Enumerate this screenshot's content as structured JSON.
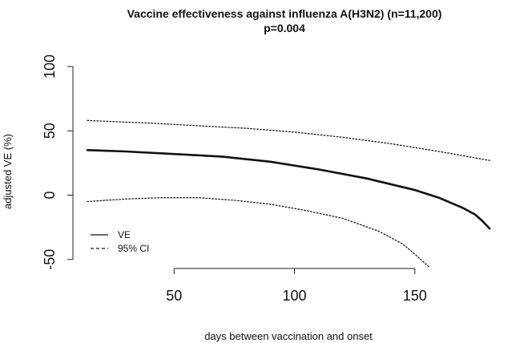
{
  "chart_data": {
    "type": "line",
    "title": "Vaccine effectiveness against influenza A(H3N2) (n=11,200)",
    "subtitle": "p=0.004",
    "xlabel": "days between vaccination and onset",
    "ylabel": "adjusted VE (%)",
    "xlim": [
      8,
      187
    ],
    "ylim": [
      -57,
      105
    ],
    "x_ticks": [
      50,
      100,
      150
    ],
    "y_ticks": [
      -50,
      0,
      50,
      100
    ],
    "grid": false,
    "legend": {
      "placement": "bottom-left",
      "entries": [
        "VE",
        "95% CI"
      ]
    },
    "series": [
      {
        "name": "VE",
        "style": "solid",
        "x": [
          14,
          30,
          50,
          70,
          90,
          110,
          130,
          150,
          160,
          170,
          175,
          178,
          181
        ],
        "y": [
          35,
          34,
          32,
          30,
          26,
          20,
          13,
          4,
          -2,
          -10,
          -15,
          -20,
          -26
        ]
      },
      {
        "name": "95% CI",
        "style": "dotted",
        "x": [
          14,
          40,
          60,
          80,
          100,
          120,
          140,
          160,
          181
        ],
        "y": [
          58,
          56,
          54,
          52,
          49,
          45,
          40,
          34,
          27
        ]
      },
      {
        "name": "95% CI",
        "style": "dotted",
        "x": [
          14,
          30,
          45,
          60,
          75,
          90,
          105,
          120,
          135,
          145,
          150,
          156
        ],
        "y": [
          -5,
          -3,
          -2,
          -2,
          -4,
          -7,
          -12,
          -18,
          -28,
          -38,
          -46,
          -56
        ]
      }
    ]
  }
}
